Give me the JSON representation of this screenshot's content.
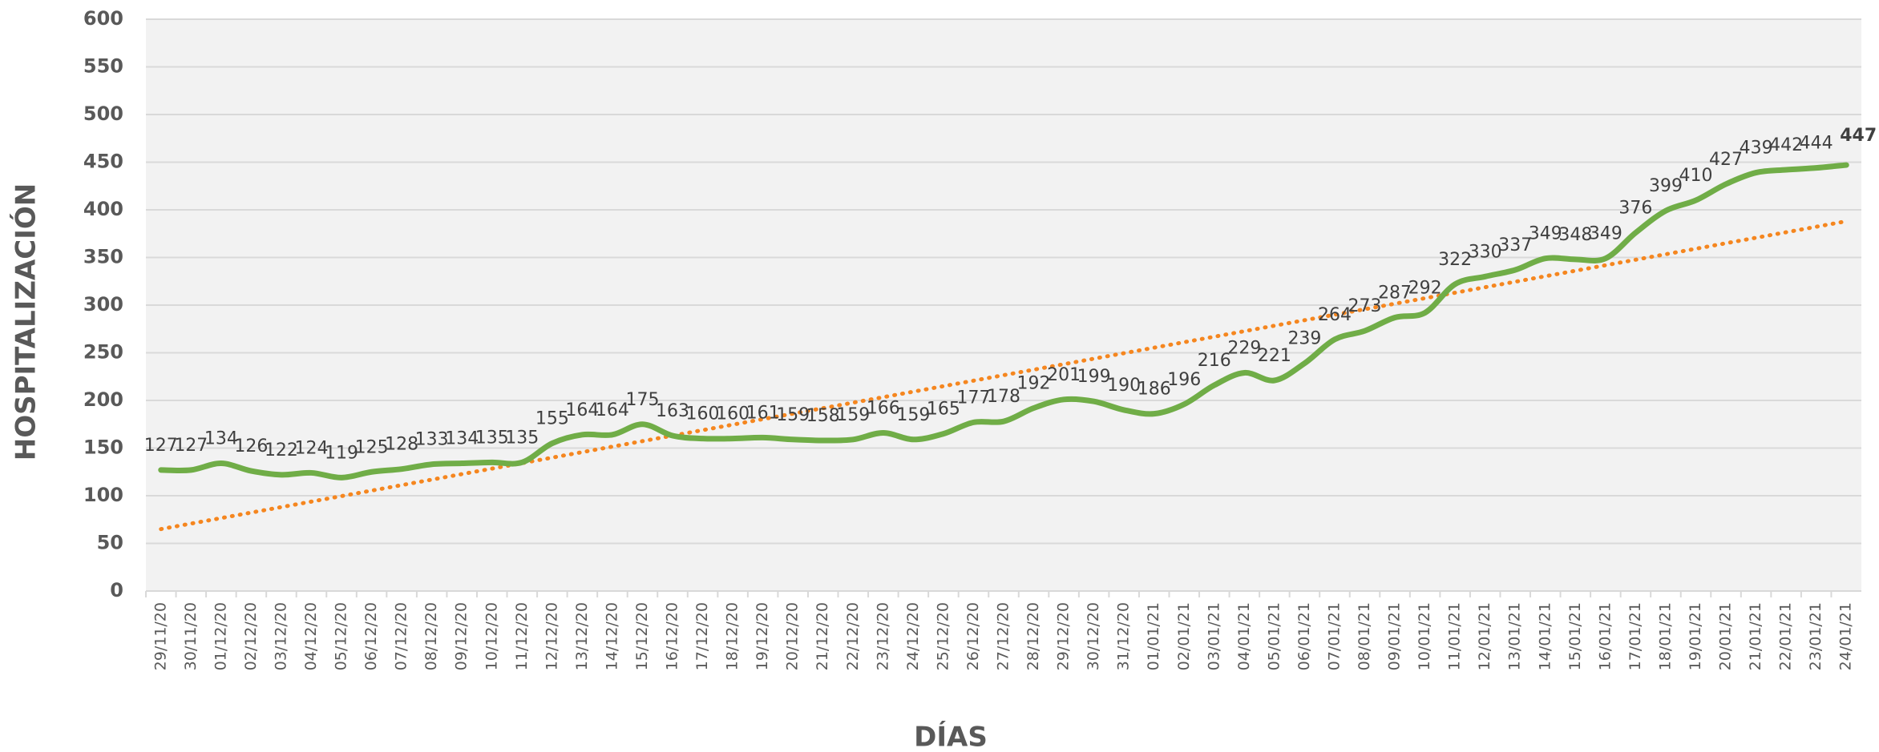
{
  "chart_data": {
    "type": "line",
    "xlabel": "DÍAS",
    "ylabel": "HOSPITALIZACIÓN",
    "categories": [
      "29/11/20",
      "30/11/20",
      "01/12/20",
      "02/12/20",
      "03/12/20",
      "04/12/20",
      "05/12/20",
      "06/12/20",
      "07/12/20",
      "08/12/20",
      "09/12/20",
      "10/12/20",
      "11/12/20",
      "12/12/20",
      "13/12/20",
      "14/12/20",
      "15/12/20",
      "16/12/20",
      "17/12/20",
      "18/12/20",
      "19/12/20",
      "20/12/20",
      "21/12/20",
      "22/12/20",
      "23/12/20",
      "24/12/20",
      "25/12/20",
      "26/12/20",
      "27/12/20",
      "28/12/20",
      "29/12/20",
      "30/12/20",
      "31/12/20",
      "01/01/21",
      "02/01/21",
      "03/01/21",
      "04/01/21",
      "05/01/21",
      "06/01/21",
      "07/01/21",
      "08/01/21",
      "09/01/21",
      "10/01/21",
      "11/01/21",
      "12/01/21",
      "13/01/21",
      "14/01/21",
      "15/01/21",
      "16/01/21",
      "17/01/21",
      "18/01/21",
      "19/01/21",
      "20/01/21",
      "21/01/21",
      "22/01/21",
      "23/01/21",
      "24/01/21"
    ],
    "values": [
      127,
      127,
      134,
      126,
      122,
      124,
      119,
      125,
      128,
      133,
      134,
      135,
      135,
      155,
      164,
      164,
      175,
      163,
      160,
      160,
      161,
      159,
      158,
      159,
      166,
      159,
      165,
      177,
      178,
      192,
      201,
      199,
      190,
      186,
      196,
      216,
      229,
      221,
      239,
      264,
      273,
      287,
      292,
      322,
      330,
      337,
      349,
      348,
      349,
      376,
      399,
      410,
      427,
      439,
      442,
      444,
      447
    ],
    "color": "#70ad47",
    "trend": {
      "color": "#f5861f",
      "values": [
        65,
        388
      ]
    },
    "ylim": [
      0,
      600
    ],
    "yticks": [
      0,
      50,
      100,
      150,
      200,
      250,
      300,
      350,
      400,
      450,
      500,
      550,
      600
    ],
    "grid": true
  }
}
